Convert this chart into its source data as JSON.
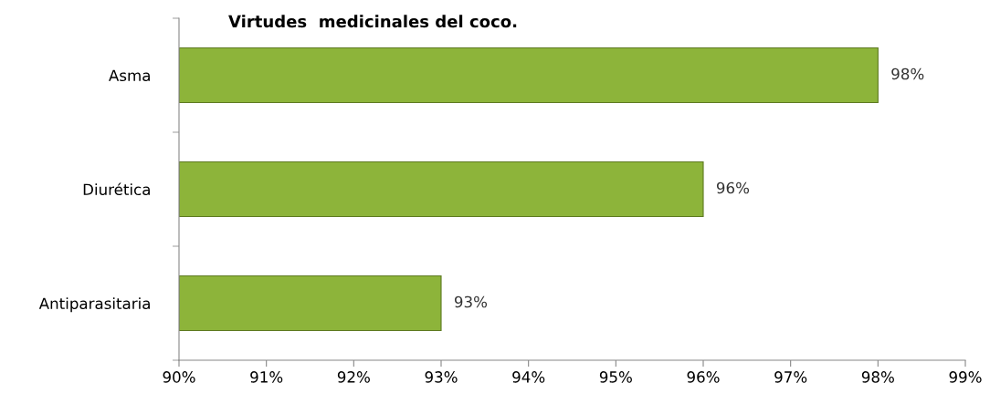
{
  "chart_data": {
    "type": "bar",
    "orientation": "horizontal",
    "title": "Virtudes  medicinales del coco.",
    "categories": [
      "Asma",
      "Diurética",
      "Antiparasitaria"
    ],
    "values": [
      98,
      96,
      93
    ],
    "value_labels": [
      "98%",
      "96%",
      "93%"
    ],
    "color": "#8db43a",
    "xlim": [
      90,
      99
    ],
    "xticks": [
      {
        "value": 90,
        "label": "90%"
      },
      {
        "value": 91,
        "label": "91%"
      },
      {
        "value": 92,
        "label": "92%"
      },
      {
        "value": 93,
        "label": "93%"
      },
      {
        "value": 94,
        "label": "94%"
      },
      {
        "value": 95,
        "label": "95%"
      },
      {
        "value": 96,
        "label": "96%"
      },
      {
        "value": 97,
        "label": "97%"
      },
      {
        "value": 98,
        "label": "98%"
      },
      {
        "value": 99,
        "label": "99%"
      }
    ],
    "grid": false,
    "legend": false
  }
}
